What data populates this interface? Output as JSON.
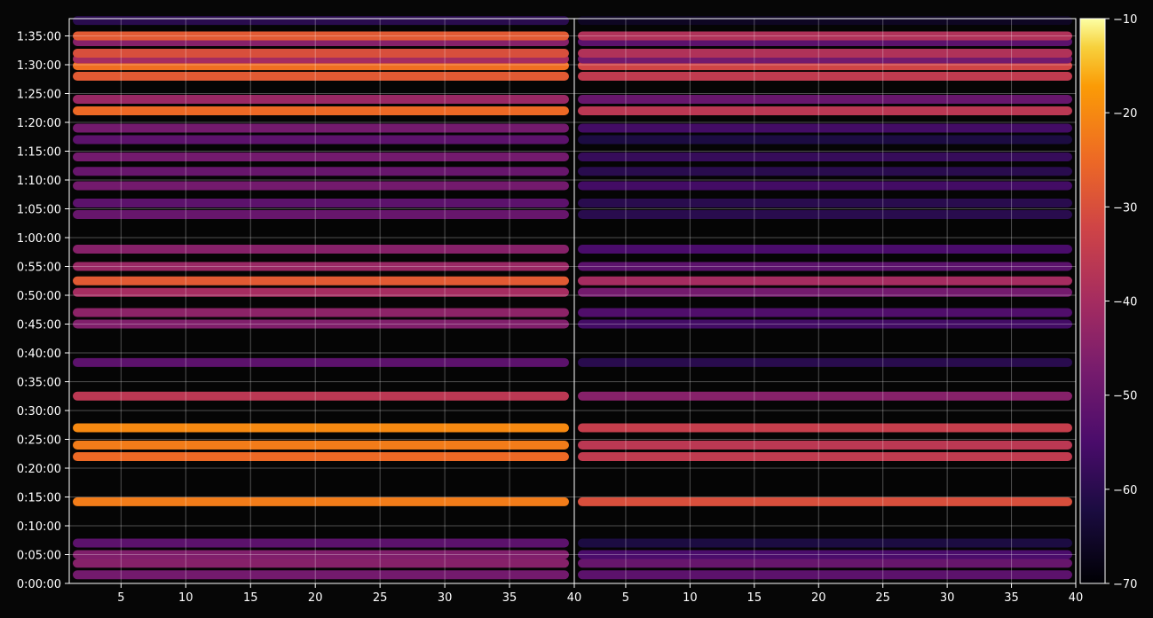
{
  "chart_data": {
    "type": "heatmap",
    "title": "",
    "panels": [
      {
        "name": "",
        "xlim": [
          1,
          40
        ],
        "xticks": [
          "5",
          "10",
          "15",
          "20",
          "25",
          "30",
          "35",
          "40"
        ]
      },
      {
        "name": "",
        "xlim": [
          1,
          40
        ],
        "xticks": [
          "5",
          "10",
          "15",
          "20",
          "25",
          "30",
          "35",
          "40"
        ]
      }
    ],
    "x_ticks_left": [
      "5",
      "10",
      "15",
      "20",
      "25",
      "30",
      "35",
      "40"
    ],
    "x_ticks_right": [
      "5",
      "10",
      "15",
      "20",
      "25",
      "30",
      "35",
      "40"
    ],
    "y_ticks": [
      "0:00:00",
      "0:05:00",
      "0:10:00",
      "0:15:00",
      "0:20:00",
      "0:25:00",
      "0:30:00",
      "0:35:00",
      "0:40:00",
      "0:45:00",
      "0:50:00",
      "0:55:00",
      "1:00:00",
      "1:05:00",
      "1:10:00",
      "1:15:00",
      "1:20:00",
      "1:25:00",
      "1:30:00",
      "1:35:00"
    ],
    "ylim_seconds": [
      0,
      5880
    ],
    "grid": true,
    "colormap": "inferno",
    "colorbar": {
      "min": -70,
      "max": -10,
      "ticks": [
        "−10",
        "−20",
        "−30",
        "−40",
        "−50",
        "−60",
        "−70"
      ]
    },
    "bands": [
      {
        "t_seconds": 90,
        "left": -48,
        "right": -52
      },
      {
        "t_seconds": 210,
        "left": -45,
        "right": -50
      },
      {
        "t_seconds": 300,
        "left": -46,
        "right": -55
      },
      {
        "t_seconds": 420,
        "left": -52,
        "right": -62
      },
      {
        "t_seconds": 850,
        "left": -22,
        "right": -30
      },
      {
        "t_seconds": 1320,
        "left": -25,
        "right": -35
      },
      {
        "t_seconds": 1440,
        "left": -22,
        "right": -36
      },
      {
        "t_seconds": 1620,
        "left": -20,
        "right": -34
      },
      {
        "t_seconds": 1950,
        "left": -36,
        "right": -45
      },
      {
        "t_seconds": 2300,
        "left": -52,
        "right": -60
      },
      {
        "t_seconds": 2700,
        "left": -46,
        "right": -56
      },
      {
        "t_seconds": 2820,
        "left": -44,
        "right": -54
      },
      {
        "t_seconds": 3030,
        "left": -40,
        "right": -48
      },
      {
        "t_seconds": 3150,
        "left": -28,
        "right": -40
      },
      {
        "t_seconds": 3300,
        "left": -42,
        "right": -52
      },
      {
        "t_seconds": 3480,
        "left": -45,
        "right": -55
      },
      {
        "t_seconds": 3840,
        "left": -50,
        "right": -60
      },
      {
        "t_seconds": 3960,
        "left": -52,
        "right": -60
      },
      {
        "t_seconds": 4140,
        "left": -48,
        "right": -56
      },
      {
        "t_seconds": 4290,
        "left": -50,
        "right": -60
      },
      {
        "t_seconds": 4440,
        "left": -48,
        "right": -58
      },
      {
        "t_seconds": 4620,
        "left": -52,
        "right": -62
      },
      {
        "t_seconds": 4740,
        "left": -48,
        "right": -56
      },
      {
        "t_seconds": 4920,
        "left": -25,
        "right": -36
      },
      {
        "t_seconds": 5040,
        "left": -42,
        "right": -50
      },
      {
        "t_seconds": 5280,
        "left": -28,
        "right": -35
      },
      {
        "t_seconds": 5390,
        "left": -24,
        "right": -32
      },
      {
        "t_seconds": 5460,
        "left": -40,
        "right": -48
      },
      {
        "t_seconds": 5520,
        "left": -30,
        "right": -38
      },
      {
        "t_seconds": 5640,
        "left": -45,
        "right": -52
      },
      {
        "t_seconds": 5700,
        "left": -28,
        "right": -38
      },
      {
        "t_seconds": 5860,
        "left": -60,
        "right": -66
      }
    ]
  }
}
